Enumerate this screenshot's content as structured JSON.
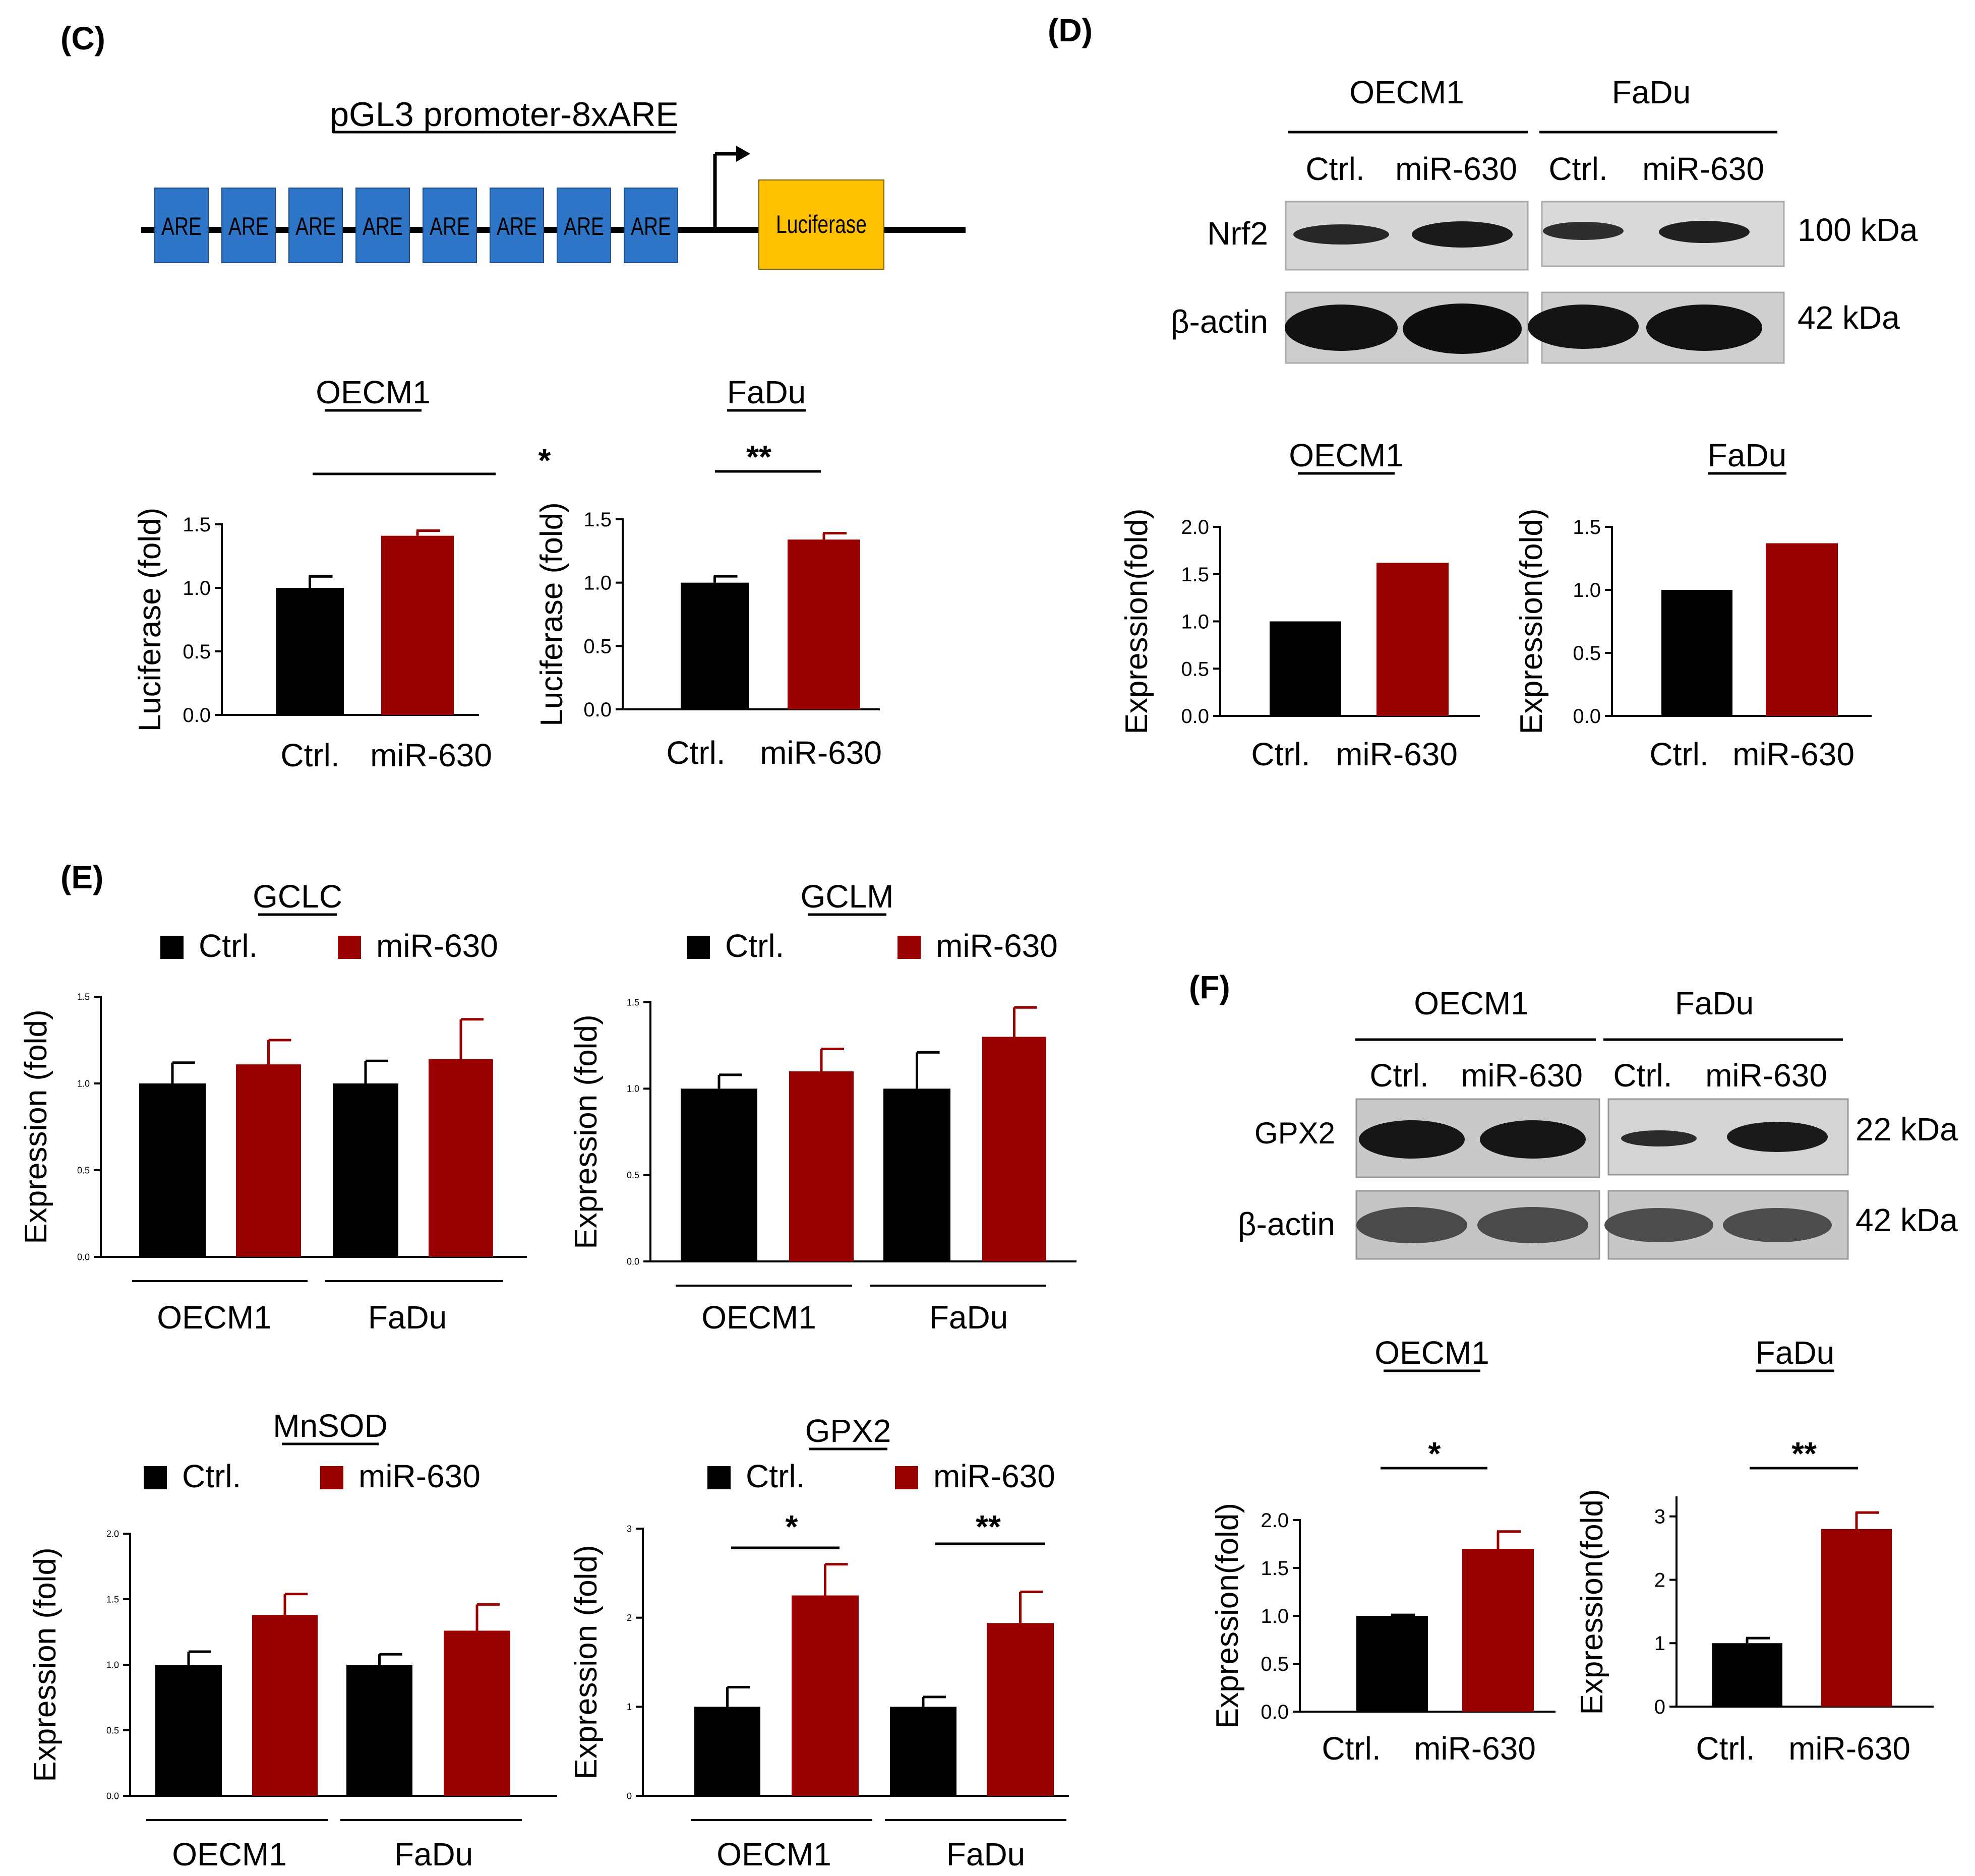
{
  "panels": {
    "C": "(C)",
    "D": "(D)",
    "E": "(E)",
    "F": "(F)"
  },
  "construct": {
    "title": "pGL3 promoter-8xARE",
    "element_label": "ARE",
    "element_count": 8,
    "reporter": "Luciferase",
    "element_color": "#2E75C8",
    "reporter_color": "#FFC000"
  },
  "colors": {
    "ctrl": "#000000",
    "mir": "#990000"
  },
  "legend": {
    "ctrl": "Ctrl.",
    "mir": "miR-630"
  },
  "western_D": {
    "groups": [
      "OECM1",
      "FaDu"
    ],
    "lanes": [
      "Ctrl.",
      "miR-630",
      "Ctrl.",
      "miR-630"
    ],
    "rows": [
      "Nrf2",
      "β-actin"
    ],
    "sizes": [
      "100 kDa",
      "42 kDa"
    ]
  },
  "western_F": {
    "groups": [
      "OECM1",
      "FaDu"
    ],
    "lanes": [
      "Ctrl.",
      "miR-630",
      "Ctrl.",
      "miR-630"
    ],
    "rows": [
      "GPX2",
      "β-actin"
    ],
    "sizes": [
      "22 kDa",
      "42 kDa"
    ]
  },
  "chart_data": [
    {
      "id": "C1",
      "type": "bar",
      "title": "OECM1",
      "ylabel": "Luciferase (fold)",
      "categories": [
        "Ctrl.",
        "miR-630"
      ],
      "values": [
        1.0,
        1.41
      ],
      "errors": [
        0.09,
        0.04
      ],
      "ylim": [
        0,
        1.5
      ],
      "yticks": [
        "0.0",
        "0.5",
        "1.0",
        "1.5"
      ],
      "significance": [
        "*"
      ]
    },
    {
      "id": "C2",
      "type": "bar",
      "title": "FaDu",
      "ylabel": "Luciferase (fold)",
      "categories": [
        "Ctrl.",
        "miR-630"
      ],
      "values": [
        1.0,
        1.34
      ],
      "errors": [
        0.05,
        0.05
      ],
      "ylim": [
        0,
        1.5
      ],
      "yticks": [
        "0.0",
        "0.5",
        "1.0",
        "1.5"
      ],
      "significance": [
        "**"
      ]
    },
    {
      "id": "D1",
      "type": "bar",
      "title": "OECM1",
      "ylabel": "Expression(fold)",
      "categories": [
        "Ctrl.",
        "miR-630"
      ],
      "values": [
        1.0,
        1.62
      ],
      "errors": [
        0,
        0
      ],
      "ylim": [
        0,
        2.0
      ],
      "yticks": [
        "0.0",
        "0.5",
        "1.0",
        "1.5",
        "2.0"
      ],
      "significance": []
    },
    {
      "id": "D2",
      "type": "bar",
      "title": "FaDu",
      "ylabel": "Expression(fold)",
      "categories": [
        "Ctrl.",
        "miR-630"
      ],
      "values": [
        1.0,
        1.37
      ],
      "errors": [
        0,
        0
      ],
      "ylim": [
        0,
        1.5
      ],
      "yticks": [
        "0.0",
        "0.5",
        "1.0",
        "1.5"
      ],
      "significance": []
    },
    {
      "id": "E1",
      "type": "bar",
      "title": "GCLC",
      "ylabel": "Expression (fold)",
      "groups": [
        "OECM1",
        "FaDu"
      ],
      "series": [
        {
          "name": "Ctrl.",
          "values": [
            1.0,
            1.0
          ],
          "errors": [
            0.12,
            0.13
          ]
        },
        {
          "name": "miR-630",
          "values": [
            1.11,
            1.14
          ],
          "errors": [
            0.14,
            0.23
          ]
        }
      ],
      "ylim": [
        0,
        1.5
      ],
      "yticks": [
        "0.0",
        "0.5",
        "1.0",
        "1.5"
      ],
      "significance": []
    },
    {
      "id": "E2",
      "type": "bar",
      "title": "GCLM",
      "ylabel": "Expression (fold)",
      "groups": [
        "OECM1",
        "FaDu"
      ],
      "series": [
        {
          "name": "Ctrl.",
          "values": [
            1.0,
            1.0
          ],
          "errors": [
            0.08,
            0.21
          ]
        },
        {
          "name": "miR-630",
          "values": [
            1.1,
            1.3
          ],
          "errors": [
            0.13,
            0.17
          ]
        }
      ],
      "ylim": [
        0,
        1.5
      ],
      "yticks": [
        "0.0",
        "0.5",
        "1.0",
        "1.5"
      ],
      "significance": []
    },
    {
      "id": "E3",
      "type": "bar",
      "title": "MnSOD",
      "ylabel": "Expression (fold)",
      "groups": [
        "OECM1",
        "FaDu"
      ],
      "series": [
        {
          "name": "Ctrl.",
          "values": [
            1.0,
            1.0
          ],
          "errors": [
            0.1,
            0.08
          ]
        },
        {
          "name": "miR-630",
          "values": [
            1.38,
            1.26
          ],
          "errors": [
            0.16,
            0.2
          ]
        }
      ],
      "ylim": [
        0,
        2.0
      ],
      "yticks": [
        "0.0",
        "0.5",
        "1.0",
        "1.5",
        "2.0"
      ],
      "significance": []
    },
    {
      "id": "E4",
      "type": "bar",
      "title": "GPX2",
      "ylabel": "Expression (fold)",
      "groups": [
        "OECM1",
        "FaDu"
      ],
      "series": [
        {
          "name": "Ctrl.",
          "values": [
            1.0,
            1.0
          ],
          "errors": [
            0.22,
            0.11
          ]
        },
        {
          "name": "miR-630",
          "values": [
            2.25,
            1.94
          ],
          "errors": [
            0.35,
            0.35
          ]
        }
      ],
      "ylim": [
        0,
        3
      ],
      "yticks": [
        "0",
        "1",
        "2",
        "3"
      ],
      "significance": [
        "*",
        "**"
      ]
    },
    {
      "id": "F1",
      "type": "bar",
      "title": "OECM1",
      "ylabel": "Expression(fold)",
      "categories": [
        "Ctrl.",
        "miR-630"
      ],
      "values": [
        1.0,
        1.7
      ],
      "errors": [
        0.01,
        0.18
      ],
      "ylim": [
        0,
        2.0
      ],
      "yticks": [
        "0.0",
        "0.5",
        "1.0",
        "1.5",
        "2.0"
      ],
      "significance": [
        "*"
      ]
    },
    {
      "id": "F2",
      "type": "bar",
      "title": "FaDu",
      "ylabel": "Expression(fold)",
      "categories": [
        "Ctrl.",
        "miR-630"
      ],
      "values": [
        1.0,
        2.8
      ],
      "errors": [
        0.08,
        0.26
      ],
      "ylim": [
        0,
        3.3
      ],
      "yticks": [
        "0",
        "1",
        "2",
        "3"
      ],
      "significance": [
        "**"
      ]
    }
  ]
}
